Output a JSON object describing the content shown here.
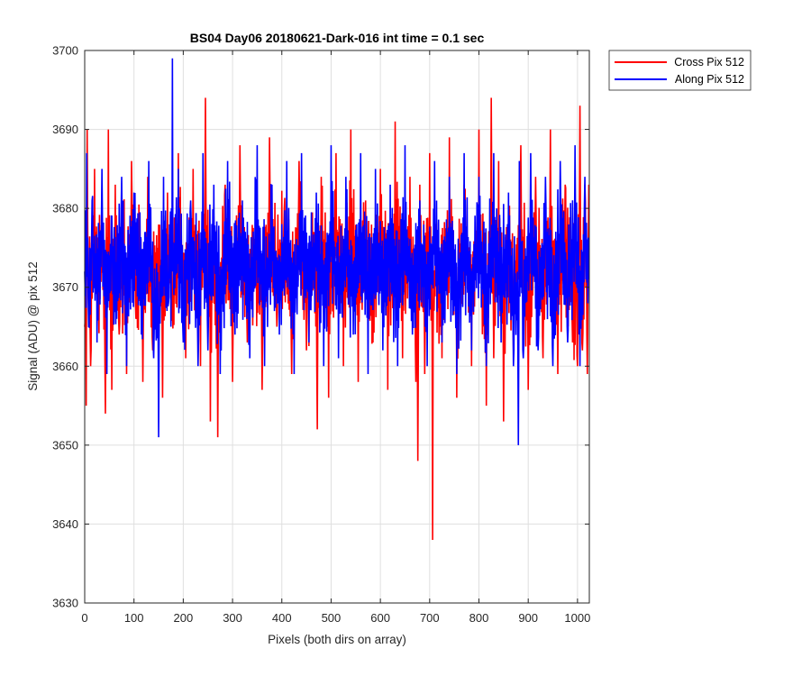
{
  "chart_data": {
    "type": "line",
    "title": "BS04 Day06 20180621-Dark-016 int time = 0.1 sec",
    "xlabel": "Pixels (both dirs on array)",
    "ylabel": "Signal (ADU) @ pix 512",
    "xlim": [
      0,
      1024
    ],
    "ylim": [
      3630,
      3700
    ],
    "xticks": [
      0,
      100,
      200,
      300,
      400,
      500,
      600,
      700,
      800,
      900,
      1000
    ],
    "yticks": [
      3630,
      3640,
      3650,
      3660,
      3670,
      3680,
      3690,
      3700
    ],
    "grid": true,
    "legend_position": "outside top-right",
    "series": [
      {
        "name": "Cross Pix 512",
        "color": "#ff0000",
        "x": [
          0,
          3,
          5,
          8,
          12,
          20,
          28,
          36,
          42,
          48,
          55,
          62,
          70,
          78,
          85,
          95,
          104,
          112,
          118,
          128,
          138,
          148,
          158,
          168,
          178,
          190,
          205,
          220,
          235,
          245,
          255,
          262,
          270,
          285,
          300,
          315,
          330,
          345,
          360,
          375,
          390,
          405,
          420,
          435,
          450,
          465,
          472,
          480,
          495,
          510,
          525,
          540,
          555,
          570,
          585,
          600,
          615,
          630,
          645,
          660,
          672,
          676,
          680,
          690,
          700,
          706,
          712,
          725,
          740,
          755,
          770,
          785,
          800,
          815,
          825,
          830,
          840,
          850,
          860,
          870,
          885,
          900,
          915,
          930,
          945,
          960,
          975,
          990,
          1000,
          1005,
          1010,
          1015,
          1020,
          1023
        ],
        "y": [
          3665,
          3655,
          3690,
          3672,
          3660,
          3685,
          3668,
          3678,
          3654,
          3690,
          3657,
          3683,
          3664,
          3676,
          3659,
          3686,
          3666,
          3679,
          3658,
          3684,
          3662,
          3675,
          3656,
          3682,
          3667,
          3687,
          3661,
          3685,
          3660,
          3694,
          3653,
          3679,
          3651,
          3683,
          3658,
          3688,
          3663,
          3676,
          3657,
          3689,
          3665,
          3680,
          3659,
          3686,
          3662,
          3677,
          3652,
          3684,
          3656,
          3687,
          3660,
          3690,
          3658,
          3681,
          3663,
          3685,
          3657,
          3691,
          3661,
          3684,
          3658,
          3648,
          3683,
          3659,
          3687,
          3638,
          3678,
          3661,
          3689,
          3656,
          3683,
          3660,
          3690,
          3655,
          3694,
          3661,
          3686,
          3653,
          3680,
          3662,
          3688,
          3657,
          3684,
          3661,
          3690,
          3659,
          3683,
          3663,
          3660,
          3693,
          3662,
          3683,
          3659,
          3683
        ]
      },
      {
        "name": "Along Pix 512",
        "color": "#0000ff",
        "x": [
          0,
          4,
          8,
          15,
          25,
          35,
          45,
          55,
          65,
          75,
          85,
          100,
          115,
          130,
          140,
          150,
          160,
          170,
          176,
          178,
          180,
          190,
          200,
          215,
          230,
          240,
          250,
          262,
          275,
          290,
          305,
          320,
          335,
          350,
          365,
          380,
          395,
          410,
          425,
          440,
          455,
          470,
          485,
          500,
          515,
          530,
          545,
          560,
          575,
          590,
          605,
          620,
          635,
          650,
          665,
          680,
          695,
          710,
          725,
          740,
          755,
          770,
          785,
          800,
          815,
          830,
          845,
          860,
          870,
          880,
          882,
          890,
          905,
          920,
          935,
          950,
          965,
          980,
          995,
          1005,
          1015,
          1023
        ],
        "y": [
          3672,
          3687,
          3665,
          3681,
          3663,
          3685,
          3659,
          3679,
          3666,
          3684,
          3660,
          3682,
          3664,
          3686,
          3661,
          3651,
          3684,
          3668,
          3680,
          3699,
          3672,
          3685,
          3663,
          3681,
          3660,
          3687,
          3662,
          3683,
          3659,
          3686,
          3664,
          3681,
          3661,
          3688,
          3660,
          3683,
          3664,
          3686,
          3659,
          3687,
          3663,
          3682,
          3660,
          3688,
          3661,
          3684,
          3664,
          3687,
          3659,
          3685,
          3662,
          3683,
          3660,
          3688,
          3664,
          3681,
          3660,
          3686,
          3663,
          3684,
          3659,
          3687,
          3662,
          3684,
          3660,
          3687,
          3663,
          3682,
          3660,
          3650,
          3686,
          3661,
          3687,
          3662,
          3684,
          3660,
          3686,
          3663,
          3688,
          3660,
          3684,
          3671
        ]
      }
    ]
  }
}
